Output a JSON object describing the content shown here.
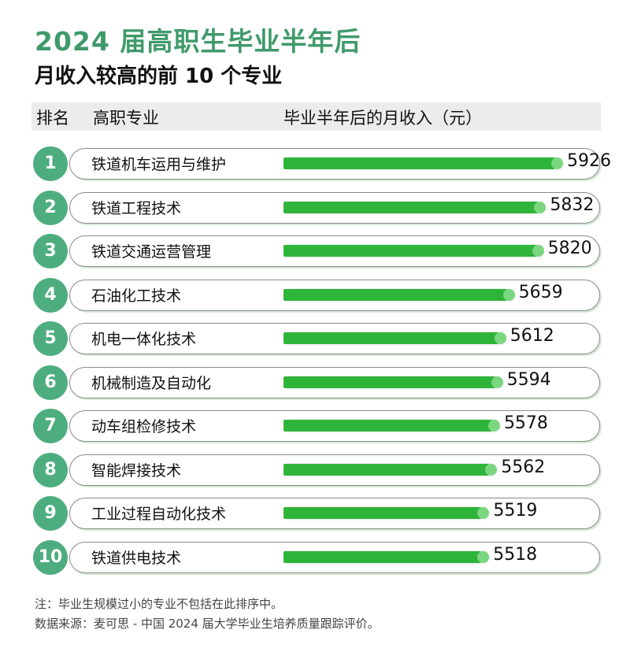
{
  "title": "2024 届高职生毕业半年后",
  "subtitle": "月收入较高的前 10 个专业",
  "header": {
    "rank": "排名",
    "major": "高职专业",
    "income": "毕业半年后的月收入（元）"
  },
  "chart_data": {
    "type": "bar",
    "orientation": "horizontal",
    "categories": [
      "铁道机车运用与维护",
      "铁道工程技术",
      "铁道交通运营管理",
      "石油化工技术",
      "机电一体化技术",
      "机械制造及自动化",
      "动车组检修技术",
      "智能焊接技术",
      "工业过程自动化技术",
      "铁道供电技术"
    ],
    "ranks": [
      "1",
      "2",
      "3",
      "4",
      "5",
      "6",
      "7",
      "8",
      "9",
      "10"
    ],
    "values": [
      5926,
      5832,
      5820,
      5659,
      5612,
      5594,
      5578,
      5562,
      5519,
      5518
    ],
    "colors": {
      "bar": "#2fb43a",
      "rank": "#4dad7e",
      "title": "#3f9a6a"
    }
  },
  "notes": {
    "note": "注：毕业生规模过小的专业不包括在此排序中。",
    "source": "数据来源：麦可思 - 中国 2024 届大学毕业生培养质量跟踪评价。"
  }
}
